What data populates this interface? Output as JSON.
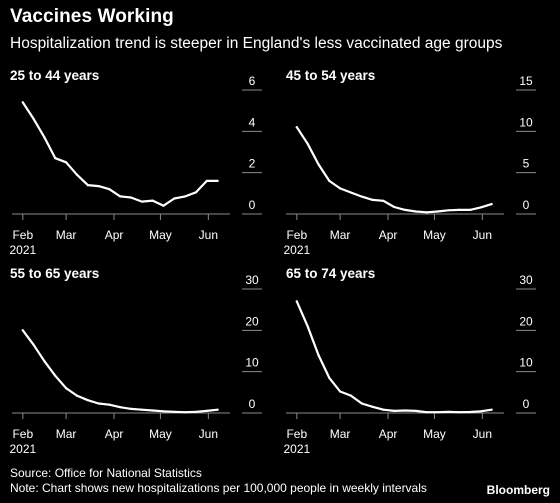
{
  "header": {
    "title": "Vaccines Working",
    "subtitle": "Hospitalization trend is steeper in England's less vaccinated age groups"
  },
  "footer": {
    "source": "Source: Office for National Statistics",
    "note": "Note: Chart shows new hospitalizations per 100,000 people in weekly intervals",
    "brand": "Bloomberg"
  },
  "colors": {
    "background": "#000000",
    "line": "#ffffff",
    "axis": "#8a8a8a",
    "text": "#ffffff"
  },
  "chart_data": [
    {
      "type": "line",
      "title": "25 to 44 years",
      "x_tick_labels": [
        "Feb",
        "Mar",
        "Apr",
        "May",
        "Jun"
      ],
      "x_tick_sublabel": "2021",
      "x": [
        "2021-02-01",
        "2021-02-08",
        "2021-02-15",
        "2021-02-22",
        "2021-03-01",
        "2021-03-08",
        "2021-03-15",
        "2021-03-22",
        "2021-03-29",
        "2021-04-05",
        "2021-04-12",
        "2021-04-19",
        "2021-04-26",
        "2021-05-03",
        "2021-05-10",
        "2021-05-17",
        "2021-05-24",
        "2021-05-31",
        "2021-06-07"
      ],
      "values": [
        5.4,
        4.6,
        3.7,
        2.7,
        2.5,
        1.9,
        1.4,
        1.35,
        1.2,
        0.85,
        0.8,
        0.6,
        0.65,
        0.4,
        0.75,
        0.85,
        1.05,
        1.6,
        1.6
      ],
      "ylim": [
        0,
        6
      ],
      "y_ticks": [
        0,
        2,
        4,
        6
      ],
      "grid": false
    },
    {
      "type": "line",
      "title": "45 to 54 years",
      "x_tick_labels": [
        "Feb",
        "Mar",
        "Apr",
        "May",
        "Jun"
      ],
      "x_tick_sublabel": "2021",
      "x": [
        "2021-02-01",
        "2021-02-08",
        "2021-02-15",
        "2021-02-22",
        "2021-03-01",
        "2021-03-08",
        "2021-03-15",
        "2021-03-22",
        "2021-03-29",
        "2021-04-05",
        "2021-04-12",
        "2021-04-19",
        "2021-04-26",
        "2021-05-03",
        "2021-05-10",
        "2021-05-17",
        "2021-05-24",
        "2021-05-31",
        "2021-06-07"
      ],
      "values": [
        10.5,
        8.5,
        6.0,
        4.0,
        3.1,
        2.6,
        2.1,
        1.7,
        1.6,
        0.85,
        0.5,
        0.3,
        0.2,
        0.3,
        0.45,
        0.5,
        0.5,
        0.8,
        1.2
      ],
      "ylim": [
        0,
        15
      ],
      "y_ticks": [
        0,
        5,
        10,
        15
      ],
      "grid": false
    },
    {
      "type": "line",
      "title": "55 to 65 years",
      "x_tick_labels": [
        "Feb",
        "Mar",
        "Apr",
        "May",
        "Jun"
      ],
      "x_tick_sublabel": "2021",
      "x": [
        "2021-02-01",
        "2021-02-08",
        "2021-02-15",
        "2021-02-22",
        "2021-03-01",
        "2021-03-08",
        "2021-03-15",
        "2021-03-22",
        "2021-03-29",
        "2021-04-05",
        "2021-04-12",
        "2021-04-19",
        "2021-04-26",
        "2021-05-03",
        "2021-05-10",
        "2021-05-17",
        "2021-05-24",
        "2021-05-31",
        "2021-06-07"
      ],
      "values": [
        20.0,
        16.5,
        12.5,
        9.0,
        6.0,
        4.2,
        3.1,
        2.3,
        2.0,
        1.4,
        1.0,
        0.8,
        0.6,
        0.4,
        0.3,
        0.2,
        0.3,
        0.5,
        0.8
      ],
      "ylim": [
        0,
        30
      ],
      "y_ticks": [
        0,
        10,
        20,
        30
      ],
      "grid": false
    },
    {
      "type": "line",
      "title": "65 to 74 years",
      "x_tick_labels": [
        "Feb",
        "Mar",
        "Apr",
        "May",
        "Jun"
      ],
      "x_tick_sublabel": "2021",
      "x": [
        "2021-02-01",
        "2021-02-08",
        "2021-02-15",
        "2021-02-22",
        "2021-03-01",
        "2021-03-08",
        "2021-03-15",
        "2021-03-22",
        "2021-03-29",
        "2021-04-05",
        "2021-04-12",
        "2021-04-19",
        "2021-04-26",
        "2021-05-03",
        "2021-05-10",
        "2021-05-17",
        "2021-05-24",
        "2021-05-31",
        "2021-06-07"
      ],
      "values": [
        27.0,
        21.0,
        14.0,
        8.5,
        5.2,
        4.2,
        2.3,
        1.5,
        0.8,
        0.5,
        0.6,
        0.5,
        0.2,
        0.2,
        0.3,
        0.2,
        0.25,
        0.4,
        0.8
      ],
      "ylim": [
        0,
        30
      ],
      "y_ticks": [
        0,
        10,
        20,
        30
      ],
      "grid": false
    }
  ]
}
